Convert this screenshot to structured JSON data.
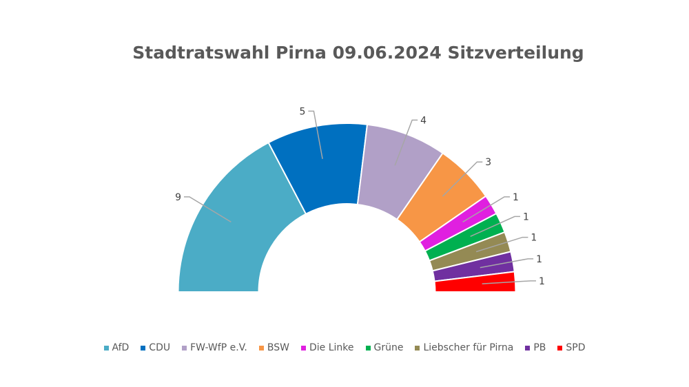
{
  "chart_data": {
    "type": "pie",
    "subtype": "half-donut",
    "title": "Stadtratswahl Pirna 09.06.2024 Sitzverteilung",
    "categories": [
      "AfD",
      "CDU",
      "FW-WfP e.V.",
      "BSW",
      "Die Linke",
      "Grüne",
      "Liebscher für Pirna",
      "PB",
      "SPD"
    ],
    "values": [
      9,
      5,
      4,
      3,
      1,
      1,
      1,
      1,
      1
    ],
    "colors": [
      "#4BACC6",
      "#0070C0",
      "#B1A0C7",
      "#F79646",
      "#E020E0",
      "#00B050",
      "#948A54",
      "#7030A0",
      "#FF0000"
    ],
    "data_labels": true,
    "legend_position": "bottom"
  }
}
